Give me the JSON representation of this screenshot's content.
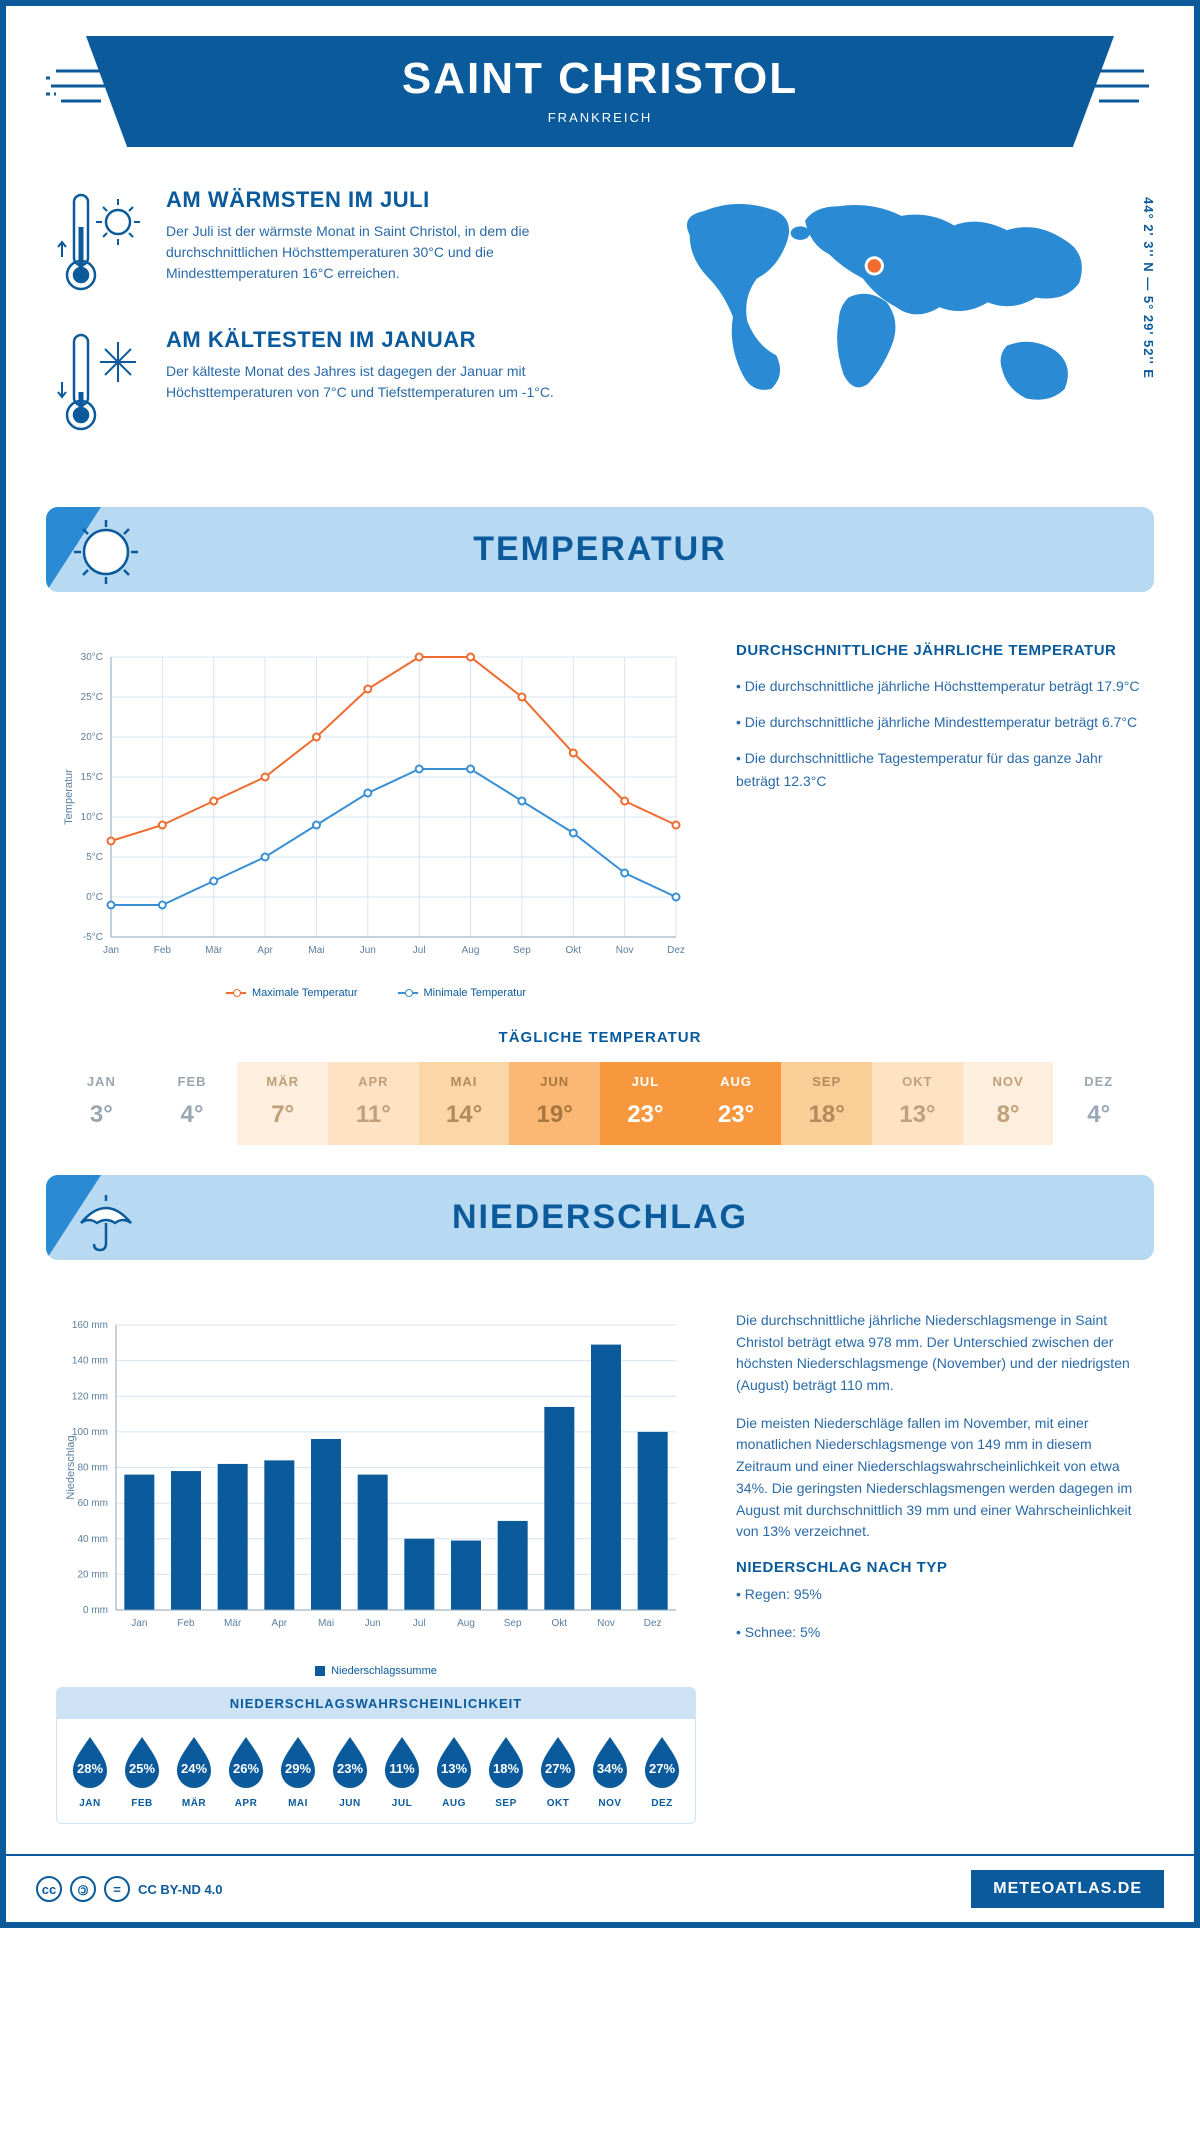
{
  "colors": {
    "primary": "#0a5a9c",
    "primary_light": "#2a8ad4",
    "banner_bg": "#b8d9f2",
    "text": "#2a6aa8",
    "grid": "#d8e4ee",
    "max_line": "#ef6b2f",
    "min_line": "#3a8fd4",
    "bar": "#0a5a9c",
    "drop_fill": "#0a5a9c"
  },
  "header": {
    "title": "SAINT CHRISTOL",
    "subtitle": "FRANKREICH"
  },
  "coords": "44° 2' 3'' N — 5° 29' 52'' E",
  "warmest": {
    "title": "AM WÄRMSTEN IM JULI",
    "text": "Der Juli ist der wärmste Monat in Saint Christol, in dem die durchschnittlichen Höchsttemperaturen 30°C und die Mindesttemperaturen 16°C erreichen."
  },
  "coldest": {
    "title": "AM KÄLTESTEN IM JANUAR",
    "text": "Der kälteste Monat des Jahres ist dagegen der Januar mit Höchsttemperaturen von 7°C und Tiefsttemperaturen um -1°C."
  },
  "temp_banner": "TEMPERATUR",
  "temp_chart": {
    "type": "line",
    "months": [
      "Jan",
      "Feb",
      "Mär",
      "Apr",
      "Mai",
      "Jun",
      "Jul",
      "Aug",
      "Sep",
      "Okt",
      "Nov",
      "Dez"
    ],
    "max_series": [
      7,
      9,
      12,
      15,
      20,
      26,
      30,
      30,
      25,
      18,
      12,
      9
    ],
    "min_series": [
      -1,
      -1,
      2,
      5,
      9,
      13,
      16,
      16,
      12,
      8,
      3,
      0
    ],
    "ylabel": "Temperatur",
    "ymin": -5,
    "ymax": 30,
    "ystep": 5,
    "legend_max": "Maximale Temperatur",
    "legend_min": "Minimale Temperatur"
  },
  "temp_info": {
    "heading": "DURCHSCHNITTLICHE JÄHRLICHE TEMPERATUR",
    "b1": "• Die durchschnittliche jährliche Höchsttemperatur beträgt 17.9°C",
    "b2": "• Die durchschnittliche jährliche Mindesttemperatur beträgt 6.7°C",
    "b3": "• Die durchschnittliche Tagestemperatur für das ganze Jahr beträgt 12.3°C"
  },
  "daily_temp": {
    "heading": "TÄGLICHE TEMPERATUR",
    "months": [
      "JAN",
      "FEB",
      "MÄR",
      "APR",
      "MAI",
      "JUN",
      "JUL",
      "AUG",
      "SEP",
      "OKT",
      "NOV",
      "DEZ"
    ],
    "values": [
      "3°",
      "4°",
      "7°",
      "11°",
      "14°",
      "19°",
      "23°",
      "23°",
      "18°",
      "13°",
      "8°",
      "4°"
    ],
    "bg": [
      "#ffffff",
      "#ffffff",
      "#fdeedd",
      "#fde3c4",
      "#fbd6a7",
      "#fab874",
      "#f7983f",
      "#f7983f",
      "#fbce98",
      "#fde3c4",
      "#fdeedd",
      "#ffffff"
    ],
    "fg": [
      "#9aa7b3",
      "#9aa7b3",
      "#bfa07a",
      "#bfa07a",
      "#b38a5c",
      "#a8763f",
      "#ffffff",
      "#ffffff",
      "#b38a5c",
      "#bfa07a",
      "#bfa07a",
      "#9aa7b3"
    ]
  },
  "precip_banner": "NIEDERSCHLAG",
  "precip_chart": {
    "type": "bar",
    "months": [
      "Jan",
      "Feb",
      "Mär",
      "Apr",
      "Mai",
      "Jun",
      "Jul",
      "Aug",
      "Sep",
      "Okt",
      "Nov",
      "Dez"
    ],
    "values": [
      76,
      78,
      82,
      84,
      96,
      76,
      40,
      39,
      50,
      114,
      149,
      100
    ],
    "ylabel": "Niederschlag",
    "ymin": 0,
    "ymax": 160,
    "ystep": 20,
    "legend": "Niederschlagssumme"
  },
  "precip_info": {
    "p1": "Die durchschnittliche jährliche Niederschlagsmenge in Saint Christol beträgt etwa 978 mm. Der Unterschied zwischen der höchsten Niederschlagsmenge (November) und der niedrigsten (August) beträgt 110 mm.",
    "p2": "Die meisten Niederschläge fallen im November, mit einer monatlichen Niederschlagsmenge von 149 mm in diesem Zeitraum und einer Niederschlagswahrscheinlichkeit von etwa 34%. Die geringsten Niederschlagsmengen werden dagegen im August mit durchschnittlich 39 mm und einer Wahrscheinlichkeit von 13% verzeichnet.",
    "type_heading": "NIEDERSCHLAG NACH TYP",
    "type1": "• Regen: 95%",
    "type2": "• Schnee: 5%"
  },
  "precip_prob": {
    "heading": "NIEDERSCHLAGSWAHRSCHEINLICHKEIT",
    "months": [
      "JAN",
      "FEB",
      "MÄR",
      "APR",
      "MAI",
      "JUN",
      "JUL",
      "AUG",
      "SEP",
      "OKT",
      "NOV",
      "DEZ"
    ],
    "values": [
      "28%",
      "25%",
      "24%",
      "26%",
      "29%",
      "23%",
      "11%",
      "13%",
      "18%",
      "27%",
      "34%",
      "27%"
    ]
  },
  "footer": {
    "license": "CC BY-ND 4.0",
    "site": "METEOATLAS.DE"
  }
}
